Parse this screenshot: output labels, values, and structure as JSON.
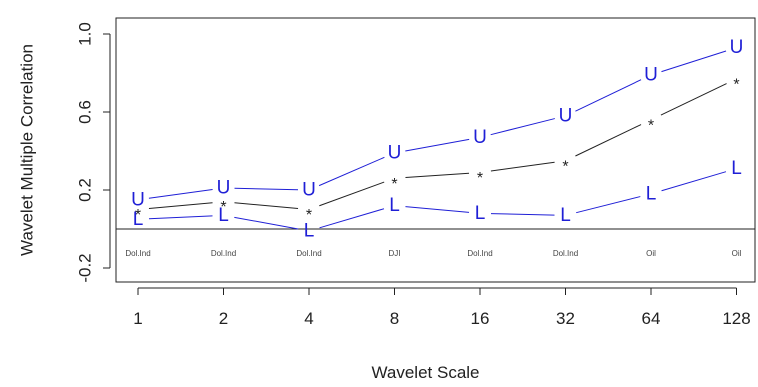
{
  "chart_data": {
    "type": "line",
    "xlabel": "Wavelet Scale",
    "ylabel": "Wavelet Multiple Correlation",
    "categories": [
      "1",
      "2",
      "4",
      "8",
      "16",
      "32",
      "64",
      "128"
    ],
    "point_labels": [
      "Dol.Ind",
      "Dol.Ind",
      "Dol.Ind",
      "DJI",
      "Dol.Ind",
      "Dol.Ind",
      "Oil",
      "Oil"
    ],
    "ylim": [
      -0.3,
      1.05
    ],
    "yticks": [
      -0.2,
      0.2,
      0.6,
      1.0
    ],
    "ytick_labels": [
      "-0.2",
      "0.2",
      "0.6",
      "1.0"
    ],
    "reference_line": 0,
    "grid": false,
    "series": [
      {
        "marker": "U",
        "color": "#1f1fd6",
        "values": [
          0.15,
          0.21,
          0.2,
          0.39,
          0.47,
          0.58,
          0.79,
          0.93
        ]
      },
      {
        "marker": "*",
        "color": "#222222",
        "values": [
          0.1,
          0.14,
          0.1,
          0.26,
          0.29,
          0.35,
          0.56,
          0.77
        ]
      },
      {
        "marker": "L",
        "color": "#1f1fd6",
        "values": [
          0.05,
          0.07,
          -0.01,
          0.12,
          0.08,
          0.07,
          0.18,
          0.31
        ]
      }
    ]
  }
}
